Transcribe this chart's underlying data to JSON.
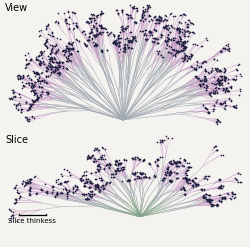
{
  "title_view": "View",
  "title_slice": "Slice",
  "scale_label": "Slice thinkess",
  "bg_color": "#f5f3f0",
  "line_color_purple": "#c090c0",
  "line_color_gray": "#a0a8b0",
  "line_color_green": "#80a088",
  "dot_color": "#202040",
  "dot_size": 1.2,
  "line_width": 0.4,
  "seed": 42
}
